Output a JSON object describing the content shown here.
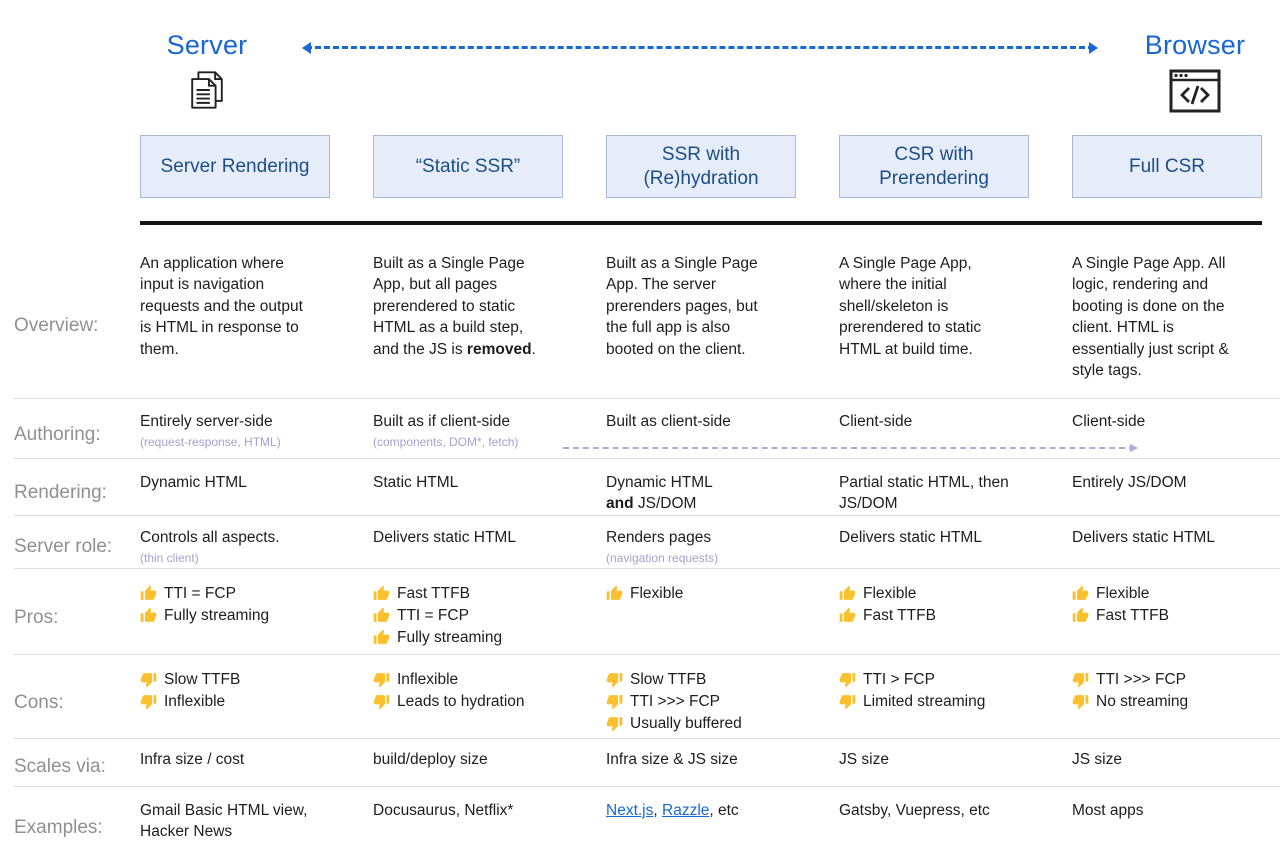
{
  "top": {
    "server_label": "Server",
    "browser_label": "Browser"
  },
  "columns": [
    "Server Rendering",
    "“Static SSR”",
    "SSR with (Re)hydration",
    "CSR with Prerendering",
    "Full CSR"
  ],
  "colors": {
    "accent_blue": "#1967d2",
    "header_text": "#1b4e89",
    "header_bg": "#e7edf8",
    "header_border": "#a9b8d8",
    "label_gray": "#909090",
    "sub_purple": "#a49fd1",
    "link_blue": "#1967d2",
    "thumb_gold": "#fbc02d"
  },
  "icons": {
    "server": "documents-icon",
    "browser": "browser-code-icon",
    "pro": "thumbs-up-icon",
    "con": "thumbs-down-icon"
  },
  "rows": {
    "overview": {
      "label": "Overview:",
      "cells": [
        {
          "plain": "An application where input is navigation requests and the output is HTML in response to them."
        },
        {
          "rich": [
            {
              "t": "Built as a Single Page App, but all pages prerendered to static HTML as a build step, and the JS is "
            },
            {
              "t": "removed",
              "b": true
            },
            {
              "t": "."
            }
          ]
        },
        {
          "plain": "Built as a Single Page App. The server prerenders pages, but the full app is also booted on the client."
        },
        {
          "plain": "A Single Page App, where the initial shell/skeleton is prerendered to static HTML at build time."
        },
        {
          "plain": "A Single Page App. All logic, rendering and booting is done on the client. HTML is essentially just script & style tags."
        }
      ]
    },
    "authoring": {
      "label": "Authoring:",
      "cells": [
        {
          "plain": "Entirely server-side",
          "sub": "(request-response, HTML)"
        },
        {
          "plain": "Built as if client-side",
          "sub": "(components, DOM*, fetch)"
        },
        {
          "plain": "Built as client-side"
        },
        {
          "plain": "Client-side"
        },
        {
          "plain": "Client-side"
        }
      ]
    },
    "rendering": {
      "label": "Rendering:",
      "cells": [
        {
          "plain": "Dynamic HTML"
        },
        {
          "plain": "Static HTML"
        },
        {
          "rich": [
            {
              "t": "Dynamic HTML"
            },
            {
              "br": true
            },
            {
              "t": "and",
              "b": true
            },
            {
              "t": " JS/DOM"
            }
          ]
        },
        {
          "plain": "Partial static HTML, then JS/DOM"
        },
        {
          "plain": "Entirely JS/DOM"
        }
      ]
    },
    "server_role": {
      "label": "Server role:",
      "cells": [
        {
          "plain": "Controls all aspects.",
          "sub": "(thin client)"
        },
        {
          "plain": "Delivers static HTML"
        },
        {
          "plain": "Renders pages",
          "sub": "(navigation requests)"
        },
        {
          "plain": "Delivers static HTML"
        },
        {
          "plain": "Delivers static HTML"
        }
      ]
    },
    "pros": {
      "label": "Pros:",
      "cells": [
        {
          "items": [
            "TTI = FCP",
            "Fully streaming"
          ]
        },
        {
          "items": [
            "Fast TTFB",
            "TTI = FCP",
            "Fully streaming"
          ]
        },
        {
          "items": [
            "Flexible"
          ]
        },
        {
          "items": [
            "Flexible",
            "Fast TTFB"
          ]
        },
        {
          "items": [
            "Flexible",
            "Fast TTFB"
          ]
        }
      ]
    },
    "cons": {
      "label": "Cons:",
      "cells": [
        {
          "items": [
            "Slow TTFB",
            "Inflexible"
          ]
        },
        {
          "items": [
            "Inflexible",
            "Leads to hydration"
          ]
        },
        {
          "items": [
            "Slow TTFB",
            "TTI >>> FCP",
            "Usually buffered"
          ]
        },
        {
          "items": [
            "TTI > FCP",
            "Limited streaming"
          ]
        },
        {
          "items": [
            "TTI >>> FCP",
            "No streaming"
          ]
        }
      ]
    },
    "scales_via": {
      "label": "Scales via:",
      "cells": [
        {
          "plain": "Infra size / cost"
        },
        {
          "plain": "build/deploy size"
        },
        {
          "plain": "Infra size & JS size"
        },
        {
          "plain": "JS size"
        },
        {
          "plain": "JS size"
        }
      ]
    },
    "examples": {
      "label": "Examples:",
      "cells": [
        {
          "plain": "Gmail Basic HTML view, Hacker News"
        },
        {
          "plain": "Docusaurus, Netflix*"
        },
        {
          "rich": [
            {
              "t": "Next.js",
              "link": true
            },
            {
              "t": ", "
            },
            {
              "t": "Razzle",
              "link": true
            },
            {
              "t": ", etc"
            }
          ]
        },
        {
          "plain": "Gatsby, Vuepress, etc"
        },
        {
          "plain": "Most apps"
        }
      ]
    }
  }
}
